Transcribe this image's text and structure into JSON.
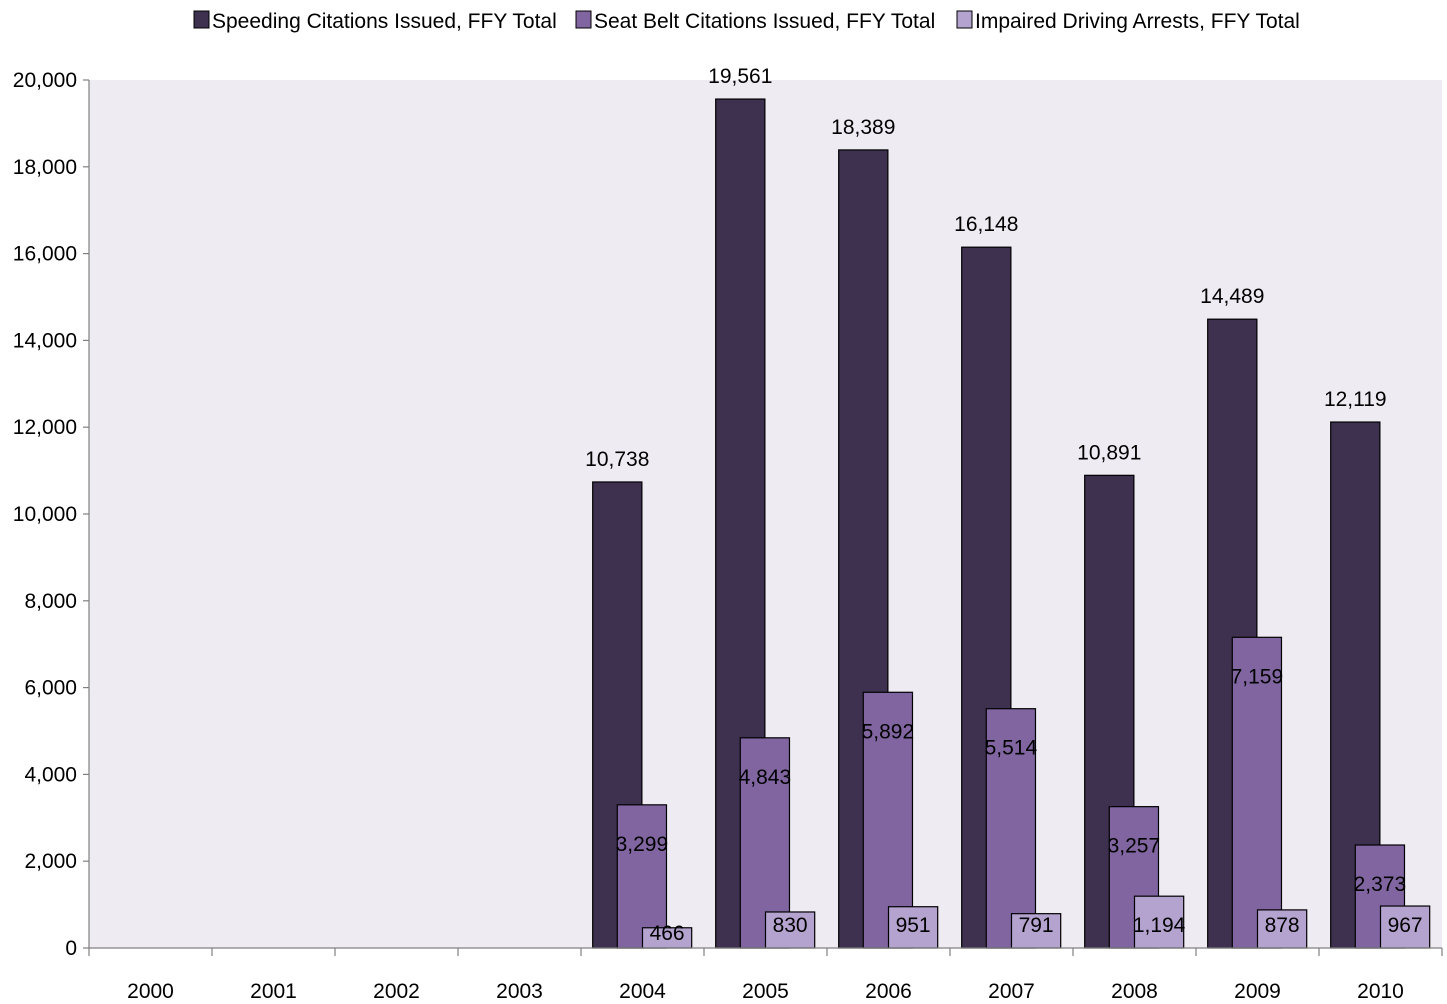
{
  "chart_data": {
    "type": "bar",
    "categories": [
      "2000",
      "2001",
      "2002",
      "2003",
      "2004",
      "2005",
      "2006",
      "2007",
      "2008",
      "2009",
      "2010"
    ],
    "series": [
      {
        "name": "Speeding Citations Issued, FFY Total",
        "color": "#3e3150",
        "values": [
          null,
          null,
          null,
          null,
          10738,
          19561,
          18389,
          16148,
          10891,
          14489,
          12119
        ],
        "labels": [
          "",
          "",
          "",
          "",
          "10,738",
          "19,561",
          "18,389",
          "16,148",
          "10,891",
          "14,489",
          "12,119"
        ]
      },
      {
        "name": "Seat Belt Citations Issued, FFY Total",
        "color": "#8065a1",
        "values": [
          null,
          null,
          null,
          null,
          3299,
          4843,
          5892,
          5514,
          3257,
          7159,
          2373
        ],
        "labels": [
          "",
          "",
          "",
          "",
          "3,299",
          "4,843",
          "5,892",
          "5,514",
          "3,257",
          "7,159",
          "2,373"
        ]
      },
      {
        "name": "Impaired Driving Arrests, FFY Total",
        "color": "#b5a3cf",
        "values": [
          null,
          null,
          null,
          null,
          466,
          830,
          951,
          791,
          1194,
          878,
          967
        ],
        "labels": [
          "",
          "",
          "",
          "",
          "466",
          "830",
          "951",
          "791",
          "1,194",
          "878",
          "967"
        ]
      }
    ],
    "ylim": [
      0,
      20000
    ],
    "yticks": [
      0,
      2000,
      4000,
      6000,
      8000,
      10000,
      12000,
      14000,
      16000,
      18000,
      20000
    ],
    "ytick_labels": [
      "0",
      "2,000",
      "4,000",
      "6,000",
      "8,000",
      "10,000",
      "12,000",
      "14,000",
      "16,000",
      "18,000",
      "20,000"
    ],
    "title": "",
    "xlabel": "",
    "ylabel": "",
    "legend_position": "top",
    "grid": false,
    "plot_background": "#efebf3"
  }
}
